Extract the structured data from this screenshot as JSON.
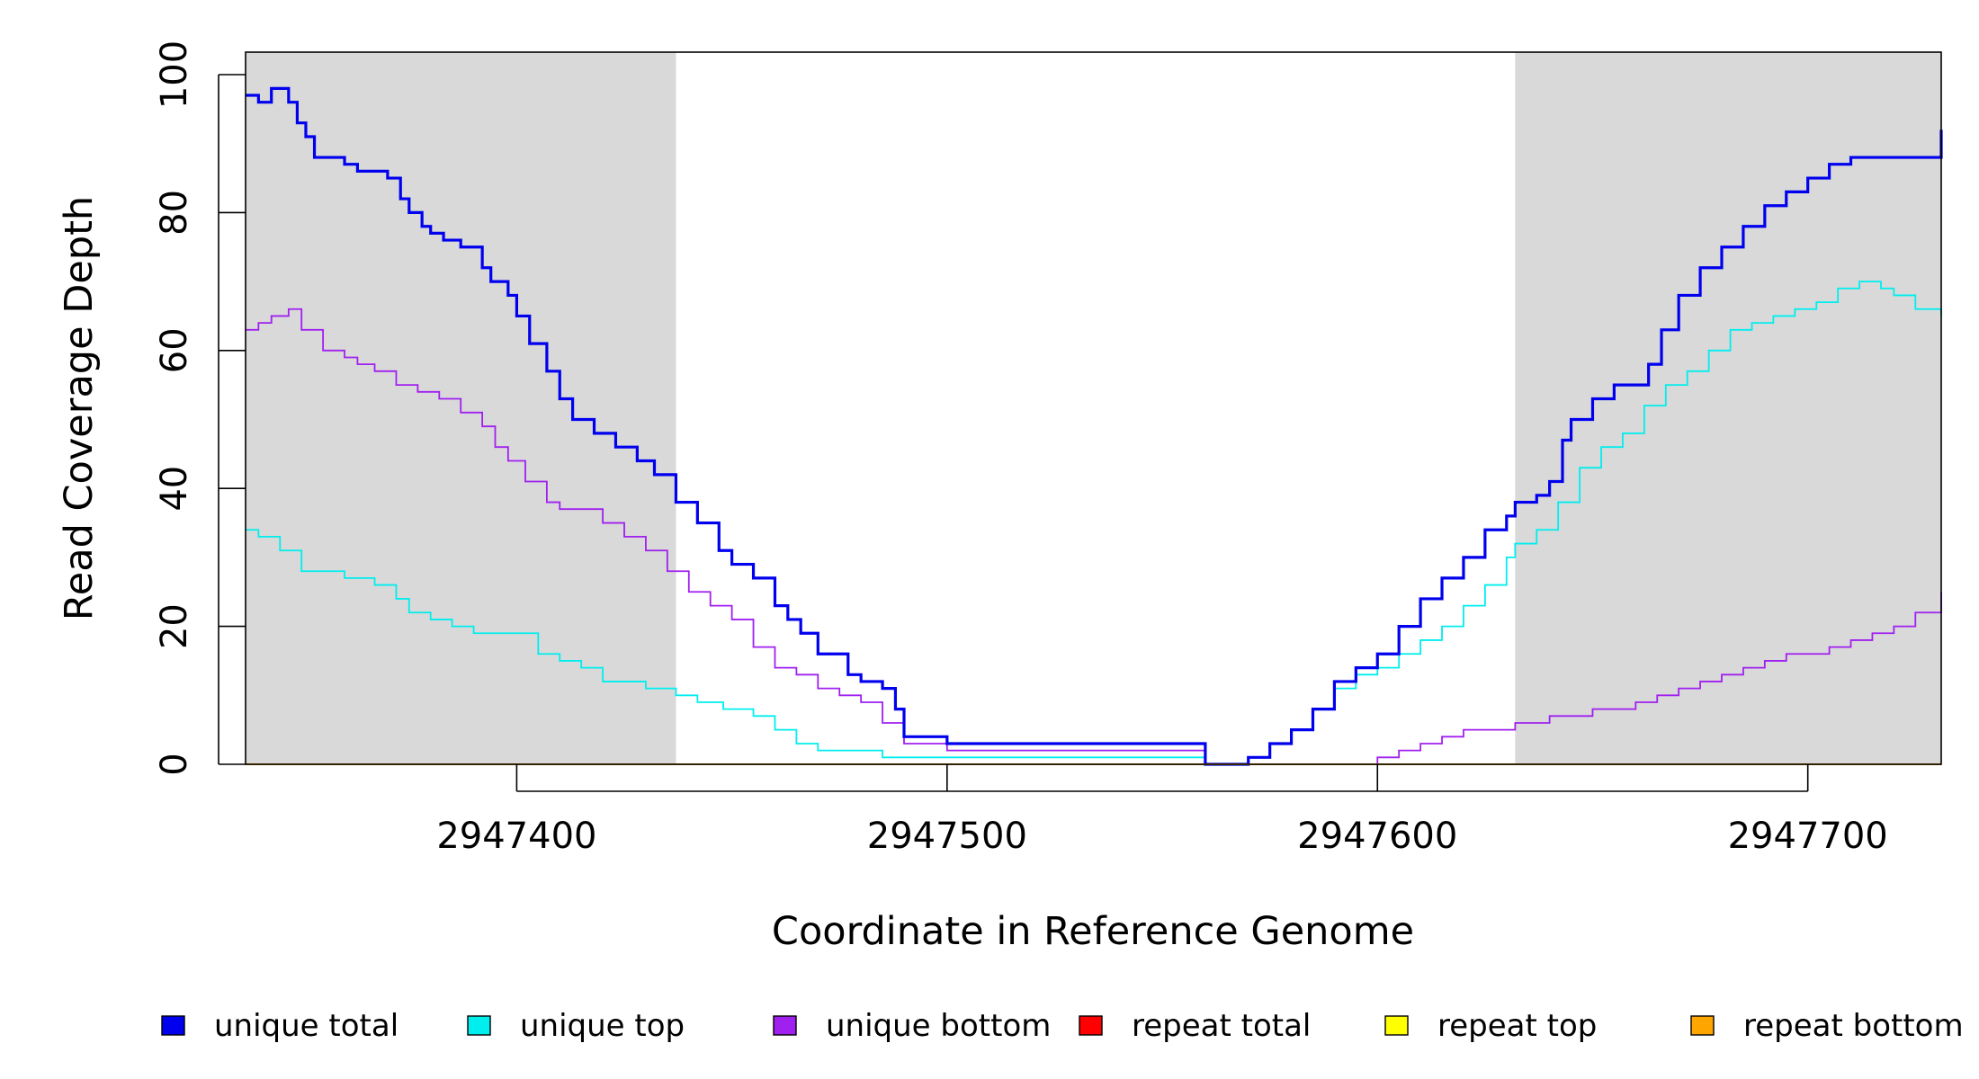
{
  "chart_data": {
    "type": "line",
    "title": "",
    "xlabel": "Coordinate in Reference Genome",
    "ylabel": "Read Coverage Depth",
    "xlim": [
      2947337,
      2947731
    ],
    "ylim": [
      0,
      100
    ],
    "x_ticks": [
      2947400,
      2947500,
      2947600,
      2947700
    ],
    "x_tick_labels": [
      "2947400",
      "2947500",
      "2947600",
      "2947700"
    ],
    "y_ticks": [
      0,
      20,
      40,
      60,
      80,
      100
    ],
    "y_tick_labels": [
      "0",
      "20",
      "40",
      "60",
      "80",
      "100"
    ],
    "shaded_regions": [
      {
        "x0": 2947337,
        "x1": 2947437
      },
      {
        "x0": 2947632,
        "x1": 2947731
      }
    ],
    "legend_position": "bottom",
    "series": [
      {
        "name": "unique total",
        "color": "#0000ee",
        "x": [
          2947337,
          2947340,
          2947343,
          2947347,
          2947349,
          2947351,
          2947353,
          2947360,
          2947363,
          2947370,
          2947373,
          2947375,
          2947378,
          2947380,
          2947383,
          2947387,
          2947392,
          2947394,
          2947398,
          2947400,
          2947403,
          2947407,
          2947410,
          2947413,
          2947418,
          2947423,
          2947428,
          2947432,
          2947437,
          2947442,
          2947447,
          2947450,
          2947455,
          2947460,
          2947463,
          2947466,
          2947470,
          2947477,
          2947480,
          2947485,
          2947488,
          2947490,
          2947495,
          2947500,
          2947510,
          2947520,
          2947530,
          2947540,
          2947545,
          2947560,
          2947570,
          2947575,
          2947580,
          2947585,
          2947590,
          2947595,
          2947600,
          2947605,
          2947610,
          2947615,
          2947620,
          2947625,
          2947630,
          2947632,
          2947637,
          2947640,
          2947643,
          2947645,
          2947650,
          2947655,
          2947660,
          2947663,
          2947666,
          2947670,
          2947675,
          2947680,
          2947685,
          2947690,
          2947695,
          2947700,
          2947705,
          2947710,
          2947715,
          2947720,
          2947725,
          2947731
        ],
        "y": [
          97,
          96,
          98,
          96,
          93,
          91,
          88,
          87,
          86,
          85,
          82,
          80,
          78,
          77,
          76,
          75,
          72,
          70,
          68,
          65,
          61,
          57,
          53,
          50,
          48,
          46,
          44,
          42,
          38,
          35,
          31,
          29,
          27,
          23,
          21,
          19,
          16,
          13,
          12,
          11,
          8,
          4,
          4,
          3,
          3,
          3,
          3,
          3,
          3,
          0,
          1,
          3,
          5,
          8,
          12,
          14,
          16,
          20,
          24,
          27,
          30,
          34,
          36,
          38,
          39,
          41,
          47,
          50,
          53,
          55,
          55,
          58,
          63,
          68,
          72,
          75,
          78,
          81,
          83,
          85,
          87,
          88,
          88,
          88,
          88,
          92
        ]
      },
      {
        "name": "unique top",
        "color": "#00eeee",
        "x": [
          2947337,
          2947340,
          2947345,
          2947350,
          2947360,
          2947367,
          2947372,
          2947375,
          2947380,
          2947385,
          2947390,
          2947395,
          2947400,
          2947405,
          2947410,
          2947415,
          2947420,
          2947430,
          2947437,
          2947442,
          2947448,
          2947455,
          2947460,
          2947465,
          2947470,
          2947480,
          2947485,
          2947490,
          2947500,
          2947520,
          2947545,
          2947560,
          2947570,
          2947575,
          2947580,
          2947585,
          2947590,
          2947595,
          2947600,
          2947605,
          2947610,
          2947615,
          2947620,
          2947625,
          2947630,
          2947632,
          2947637,
          2947642,
          2947647,
          2947652,
          2947657,
          2947662,
          2947667,
          2947672,
          2947677,
          2947682,
          2947687,
          2947692,
          2947697,
          2947702,
          2947707,
          2947712,
          2947717,
          2947720,
          2947725,
          2947731
        ],
        "y": [
          34,
          33,
          31,
          28,
          27,
          26,
          24,
          22,
          21,
          20,
          19,
          19,
          19,
          16,
          15,
          14,
          12,
          11,
          10,
          9,
          8,
          7,
          5,
          3,
          2,
          2,
          1,
          1,
          1,
          1,
          1,
          0,
          1,
          3,
          5,
          8,
          11,
          13,
          14,
          16,
          18,
          20,
          23,
          26,
          30,
          32,
          34,
          38,
          43,
          46,
          48,
          52,
          55,
          57,
          60,
          63,
          64,
          65,
          66,
          67,
          69,
          70,
          69,
          68,
          66,
          65
        ]
      },
      {
        "name": "unique bottom",
        "color": "#a020f0",
        "x": [
          2947337,
          2947340,
          2947343,
          2947347,
          2947350,
          2947355,
          2947360,
          2947363,
          2947367,
          2947372,
          2947377,
          2947382,
          2947387,
          2947392,
          2947395,
          2947398,
          2947402,
          2947407,
          2947410,
          2947420,
          2947425,
          2947430,
          2947435,
          2947440,
          2947445,
          2947450,
          2947455,
          2947460,
          2947465,
          2947470,
          2947475,
          2947480,
          2947485,
          2947490,
          2947500,
          2947520,
          2947545,
          2947560,
          2947580,
          2947600,
          2947605,
          2947610,
          2947615,
          2947620,
          2947632,
          2947640,
          2947650,
          2947660,
          2947665,
          2947670,
          2947675,
          2947680,
          2947685,
          2947690,
          2947695,
          2947700,
          2947705,
          2947710,
          2947715,
          2947720,
          2947725,
          2947731
        ],
        "y": [
          63,
          64,
          65,
          66,
          63,
          60,
          59,
          58,
          57,
          55,
          54,
          53,
          51,
          49,
          46,
          44,
          41,
          38,
          37,
          35,
          33,
          31,
          28,
          25,
          23,
          21,
          17,
          14,
          13,
          11,
          10,
          9,
          6,
          3,
          2,
          2,
          2,
          0,
          0,
          1,
          2,
          3,
          4,
          5,
          6,
          7,
          8,
          9,
          10,
          11,
          12,
          13,
          14,
          15,
          16,
          16,
          17,
          18,
          19,
          20,
          22,
          25
        ]
      },
      {
        "name": "repeat total",
        "color": "#ff0000",
        "x": [
          2947337,
          2947731
        ],
        "y": [
          0,
          0
        ]
      },
      {
        "name": "repeat top",
        "color": "#ffff00",
        "x": [
          2947337,
          2947731
        ],
        "y": [
          0,
          0
        ]
      },
      {
        "name": "repeat bottom",
        "color": "#ffa500",
        "x": [
          2947337,
          2947731
        ],
        "y": [
          0,
          0
        ]
      }
    ]
  }
}
